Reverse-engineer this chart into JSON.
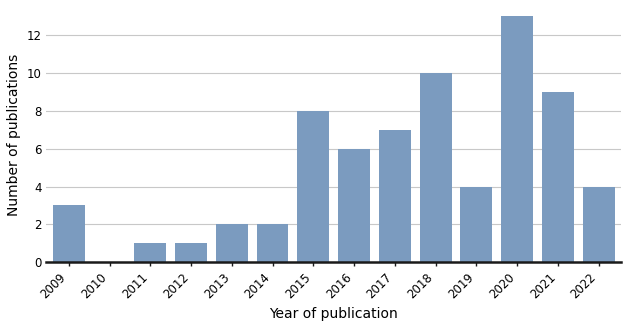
{
  "years": [
    "2009",
    "2010",
    "2011",
    "2012",
    "2013",
    "2014",
    "2015",
    "2016",
    "2017",
    "2018",
    "2019",
    "2020",
    "2021",
    "2022"
  ],
  "values": [
    3,
    0,
    1,
    1,
    2,
    2,
    8,
    6,
    7,
    10,
    4,
    13,
    9,
    4
  ],
  "bar_color": "#7b9bbf",
  "xlabel": "Year of publication",
  "ylabel": "Number of publications",
  "ylim": [
    0,
    13.5
  ],
  "yticks": [
    0,
    2,
    4,
    6,
    8,
    10,
    12
  ],
  "background_color": "#ffffff",
  "grid_color": "#c8c8c8",
  "bar_width": 0.78,
  "xlabel_fontsize": 10,
  "ylabel_fontsize": 10,
  "tick_fontsize": 8.5
}
